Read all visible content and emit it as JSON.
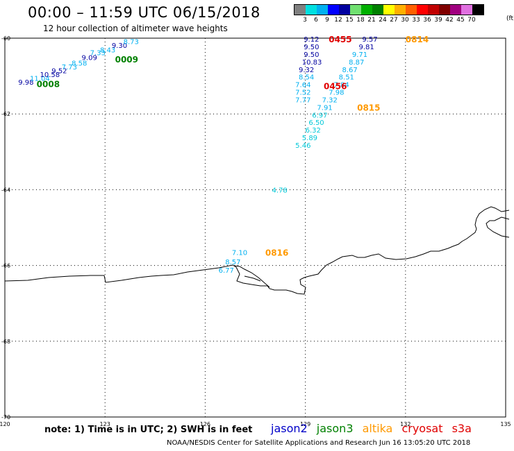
{
  "header": {
    "title": "00:00 – 11:59 UTC 06/15/2018",
    "subtitle": "12 hour collection of altimeter wave heights"
  },
  "legend": {
    "colors": [
      "#808080",
      "#00e0e0",
      "#00b0f0",
      "#0000ff",
      "#0000a0",
      "#70e070",
      "#00b000",
      "#008000",
      "#ffff00",
      "#ffb000",
      "#ff6000",
      "#ff0000",
      "#c00000",
      "#800000",
      "#a00080",
      "#e070e0",
      "#000000"
    ],
    "labels": [
      "3",
      "6",
      "9",
      "12",
      "15",
      "18",
      "21",
      "24",
      "27",
      "30",
      "33",
      "36",
      "39",
      "42",
      "45",
      "70"
    ],
    "unit": "(ft)"
  },
  "axes": {
    "lon_labels": [
      "120",
      "123",
      "126",
      "129",
      "132",
      "135"
    ],
    "lat_labels": [
      "-60",
      "-62",
      "-64",
      "-66",
      "-68",
      "-70"
    ]
  },
  "colors": {
    "jason2": "#0000c8",
    "jason3": "#008000",
    "altika": "#ff9900",
    "cryosat": "#e00000",
    "s3a": "#e00000",
    "light": "#00b0f0",
    "cyan": "#00c8d8",
    "navy": "#0000a0"
  },
  "observations": [
    {
      "v": "9.98",
      "lon": 120.4,
      "lat": -61.15,
      "c": "navy"
    },
    {
      "v": "11.04",
      "lon": 120.75,
      "lat": -61.05,
      "c": "light"
    },
    {
      "v": "10.58",
      "lon": 121.05,
      "lat": -60.95,
      "c": "navy"
    },
    {
      "v": "9.52",
      "lon": 121.4,
      "lat": -60.85,
      "c": "navy"
    },
    {
      "v": "7.73",
      "lon": 121.7,
      "lat": -60.75,
      "c": "light"
    },
    {
      "v": "8.58",
      "lon": 122.0,
      "lat": -60.65,
      "c": "light"
    },
    {
      "v": "9.09",
      "lon": 122.3,
      "lat": -60.5,
      "c": "navy"
    },
    {
      "v": "7.33",
      "lon": 122.55,
      "lat": -60.38,
      "c": "light"
    },
    {
      "v": "8.43",
      "lon": 122.85,
      "lat": -60.3,
      "c": "light"
    },
    {
      "v": "9.30",
      "lon": 123.2,
      "lat": -60.18,
      "c": "navy"
    },
    {
      "v": "8.73",
      "lon": 123.55,
      "lat": -60.08,
      "c": "light"
    },
    {
      "v": "9.12",
      "lon": 128.95,
      "lat": -60.02,
      "c": "navy"
    },
    {
      "v": "9.50",
      "lon": 128.95,
      "lat": -60.22,
      "c": "navy"
    },
    {
      "v": "9.50",
      "lon": 128.95,
      "lat": -60.42,
      "c": "navy"
    },
    {
      "v": "10.83",
      "lon": 128.9,
      "lat": -60.62,
      "c": "navy"
    },
    {
      "v": "9.32",
      "lon": 128.8,
      "lat": -60.82,
      "c": "navy"
    },
    {
      "v": "8.54",
      "lon": 128.8,
      "lat": -61.02,
      "c": "light"
    },
    {
      "v": "7.64",
      "lon": 128.7,
      "lat": -61.22,
      "c": "light"
    },
    {
      "v": "7.52",
      "lon": 128.7,
      "lat": -61.42,
      "c": "light"
    },
    {
      "v": "7.77",
      "lon": 128.7,
      "lat": -61.62,
      "c": "light"
    },
    {
      "v": "9.57",
      "lon": 130.7,
      "lat": -60.02,
      "c": "navy"
    },
    {
      "v": "9.81",
      "lon": 130.6,
      "lat": -60.22,
      "c": "navy"
    },
    {
      "v": "9.71",
      "lon": 130.4,
      "lat": -60.42,
      "c": "light"
    },
    {
      "v": "8.87",
      "lon": 130.3,
      "lat": -60.62,
      "c": "light"
    },
    {
      "v": "8.67",
      "lon": 130.1,
      "lat": -60.82,
      "c": "light"
    },
    {
      "v": "8.51",
      "lon": 130.0,
      "lat": -61.02,
      "c": "light"
    },
    {
      "v": "7.84",
      "lon": 129.85,
      "lat": -61.22,
      "c": "light"
    },
    {
      "v": "7.98",
      "lon": 129.7,
      "lat": -61.42,
      "c": "light"
    },
    {
      "v": "7.32",
      "lon": 129.5,
      "lat": -61.62,
      "c": "light"
    },
    {
      "v": "7.91",
      "lon": 129.35,
      "lat": -61.82,
      "c": "light"
    },
    {
      "v": "6.97",
      "lon": 129.2,
      "lat": -62.02,
      "c": "cyan"
    },
    {
      "v": "6.50",
      "lon": 129.1,
      "lat": -62.22,
      "c": "cyan"
    },
    {
      "v": "6.32",
      "lon": 129.0,
      "lat": -62.42,
      "c": "cyan"
    },
    {
      "v": "5.89",
      "lon": 128.9,
      "lat": -62.62,
      "c": "cyan"
    },
    {
      "v": "5.46",
      "lon": 128.7,
      "lat": -62.82,
      "c": "cyan"
    },
    {
      "v": "4.78",
      "lon": 128.0,
      "lat": -64.0,
      "c": "cyan"
    },
    {
      "v": "7.10",
      "lon": 126.8,
      "lat": -65.65,
      "c": "light"
    },
    {
      "v": "8.57",
      "lon": 126.6,
      "lat": -65.9,
      "c": "light"
    },
    {
      "v": "6.77",
      "lon": 126.4,
      "lat": -66.12,
      "c": "light"
    }
  ],
  "time_labels": [
    {
      "t": "0008",
      "lon": 120.95,
      "lat": -61.2,
      "c": "jason3"
    },
    {
      "t": "0009",
      "lon": 123.3,
      "lat": -60.55,
      "c": "jason3"
    },
    {
      "t": "0455",
      "lon": 129.7,
      "lat": -60.02,
      "c": "cryosat"
    },
    {
      "t": "0456",
      "lon": 129.55,
      "lat": -61.25,
      "c": "cryosat"
    },
    {
      "t": "0814",
      "lon": 132.0,
      "lat": -60.02,
      "c": "altika"
    },
    {
      "t": "0815",
      "lon": 130.55,
      "lat": -61.82,
      "c": "altika"
    },
    {
      "t": "0816",
      "lon": 127.8,
      "lat": -65.65,
      "c": "altika"
    }
  ],
  "note": "note:  1) Time is in UTC; 2) SWH is in feet",
  "satellites": [
    {
      "name": "jason2",
      "color": "jason2"
    },
    {
      "name": "jason3",
      "color": "jason3"
    },
    {
      "name": "altika",
      "color": "altika"
    },
    {
      "name": "cryosat",
      "color": "cryosat"
    },
    {
      "name": "s3a",
      "color": "s3a"
    }
  ],
  "footer": "NOAA/NESDIS Center for Satellite Applications and Research     Jun 16 13:05:20 UTC 2018"
}
